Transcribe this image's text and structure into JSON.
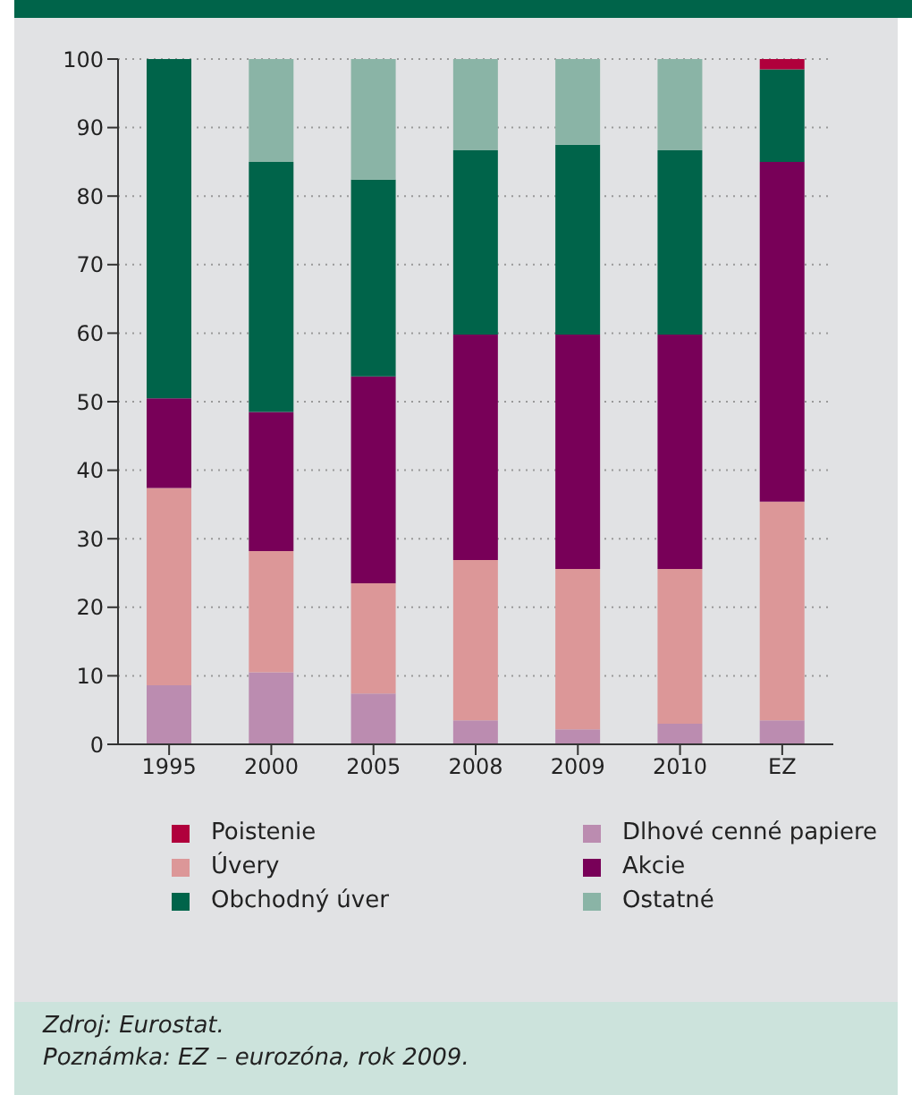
{
  "chart_data": {
    "type": "bar",
    "stacked": true,
    "categories": [
      "1995",
      "2000",
      "2005",
      "2008",
      "2009",
      "2010",
      "EZ"
    ],
    "series": [
      {
        "name": "Dlhové cenné papiere",
        "color": "#bb8cb0",
        "values": [
          8.6,
          10.5,
          7.4,
          3.5,
          2.2,
          3.0,
          3.5
        ]
      },
      {
        "name": "Úvery",
        "color": "#dc9798",
        "values": [
          28.8,
          17.7,
          16.1,
          23.4,
          23.4,
          22.6,
          31.9
        ]
      },
      {
        "name": "Akcie",
        "color": "#780058",
        "values": [
          13.1,
          20.3,
          30.2,
          32.9,
          34.2,
          34.2,
          49.6
        ]
      },
      {
        "name": "Obchodný úver",
        "color": "#00644a",
        "values": [
          49.5,
          36.5,
          28.7,
          26.9,
          27.7,
          26.9,
          13.5
        ]
      },
      {
        "name": "Ostatné",
        "color": "#8ab4a6",
        "values": [
          0,
          15.0,
          17.6,
          13.3,
          12.5,
          13.3,
          0
        ]
      },
      {
        "name": "Poistenie",
        "color": "#b0003c",
        "values": [
          0,
          0,
          0,
          0,
          0,
          0,
          1.5
        ]
      }
    ],
    "ylim": [
      0,
      100
    ],
    "yticks": [
      0,
      10,
      20,
      30,
      40,
      50,
      60,
      70,
      80,
      90,
      100
    ],
    "grid": "y",
    "legend": "bottom",
    "annotations": [
      "Zdroj: Eurostat.",
      "Poznámka: EZ – eurozóna, rok 2009."
    ]
  }
}
